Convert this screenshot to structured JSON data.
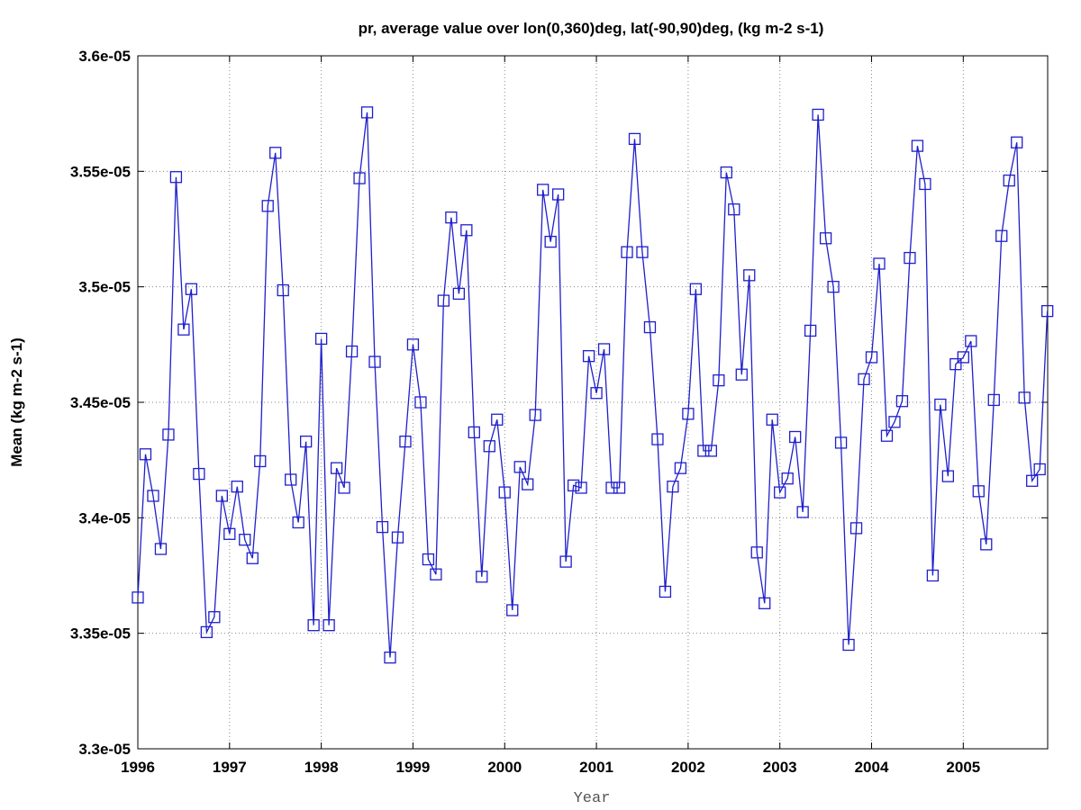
{
  "chart_data": {
    "type": "line",
    "title": "pr, average value over lon(0,360)deg, lat(-90,90)deg, (kg m-2 s-1)",
    "xlabel": "Year",
    "ylabel": "Mean (kg m-2 s-1)",
    "xlim": [
      1996,
      2005.92
    ],
    "ylim": [
      3.3e-05,
      3.6e-05
    ],
    "xticks": [
      1996,
      1997,
      1998,
      1999,
      2000,
      2001,
      2002,
      2003,
      2004,
      2005
    ],
    "xtick_labels": [
      "1996",
      "1997",
      "1998",
      "1999",
      "2000",
      "2001",
      "2002",
      "2003",
      "2004",
      "2005"
    ],
    "yticks": [
      3.3e-05,
      3.35e-05,
      3.4e-05,
      3.45e-05,
      3.5e-05,
      3.55e-05,
      3.6e-05
    ],
    "ytick_labels": [
      "3.3e-05",
      "3.35e-05",
      "3.4e-05",
      "3.45e-05",
      "3.5e-05",
      "3.55e-05",
      "3.6e-05"
    ],
    "grid": true,
    "series_color": "#1f1fcc",
    "marker": "square",
    "x_start": 1996,
    "x_step_months": 1,
    "values": [
      3.3655e-05,
      3.4275e-05,
      3.4095e-05,
      3.3865e-05,
      3.436e-05,
      3.5475e-05,
      3.4815e-05,
      3.499e-05,
      3.419e-05,
      3.3505e-05,
      3.357e-05,
      3.4095e-05,
      3.393e-05,
      3.4135e-05,
      3.3905e-05,
      3.3825e-05,
      3.4245e-05,
      3.535e-05,
      3.558e-05,
      3.4985e-05,
      3.4165e-05,
      3.398e-05,
      3.433e-05,
      3.3535e-05,
      3.4775e-05,
      3.3535e-05,
      3.4215e-05,
      3.413e-05,
      3.472e-05,
      3.547e-05,
      3.5755e-05,
      3.4675e-05,
      3.396e-05,
      3.3395e-05,
      3.3915e-05,
      3.433e-05,
      3.475e-05,
      3.45e-05,
      3.382e-05,
      3.3755e-05,
      3.494e-05,
      3.53e-05,
      3.497e-05,
      3.5245e-05,
      3.437e-05,
      3.3745e-05,
      3.431e-05,
      3.4425e-05,
      3.411e-05,
      3.36e-05,
      3.422e-05,
      3.4145e-05,
      3.4445e-05,
      3.542e-05,
      3.5195e-05,
      3.54e-05,
      3.381e-05,
      3.414e-05,
      3.413e-05,
      3.47e-05,
      3.454e-05,
      3.473e-05,
      3.413e-05,
      3.413e-05,
      3.515e-05,
      3.564e-05,
      3.515e-05,
      3.4825e-05,
      3.434e-05,
      3.368e-05,
      3.4135e-05,
      3.4215e-05,
      3.445e-05,
      3.499e-05,
      3.429e-05,
      3.429e-05,
      3.4595e-05,
      3.5495e-05,
      3.5335e-05,
      3.462e-05,
      3.505e-05,
      3.385e-05,
      3.363e-05,
      3.4425e-05,
      3.411e-05,
      3.417e-05,
      3.435e-05,
      3.4025e-05,
      3.481e-05,
      3.5745e-05,
      3.521e-05,
      3.5e-05,
      3.4325e-05,
      3.345e-05,
      3.3955e-05,
      3.46e-05,
      3.4695e-05,
      3.51e-05,
      3.4355e-05,
      3.4415e-05,
      3.4505e-05,
      3.5125e-05,
      3.561e-05,
      3.5445e-05,
      3.375e-05,
      3.449e-05,
      3.418e-05,
      3.4665e-05,
      3.4695e-05,
      3.4765e-05,
      3.4115e-05,
      3.3885e-05,
      3.451e-05,
      3.522e-05,
      3.546e-05,
      3.5625e-05,
      3.452e-05,
      3.416e-05,
      3.421e-05,
      3.4895e-05
    ]
  }
}
